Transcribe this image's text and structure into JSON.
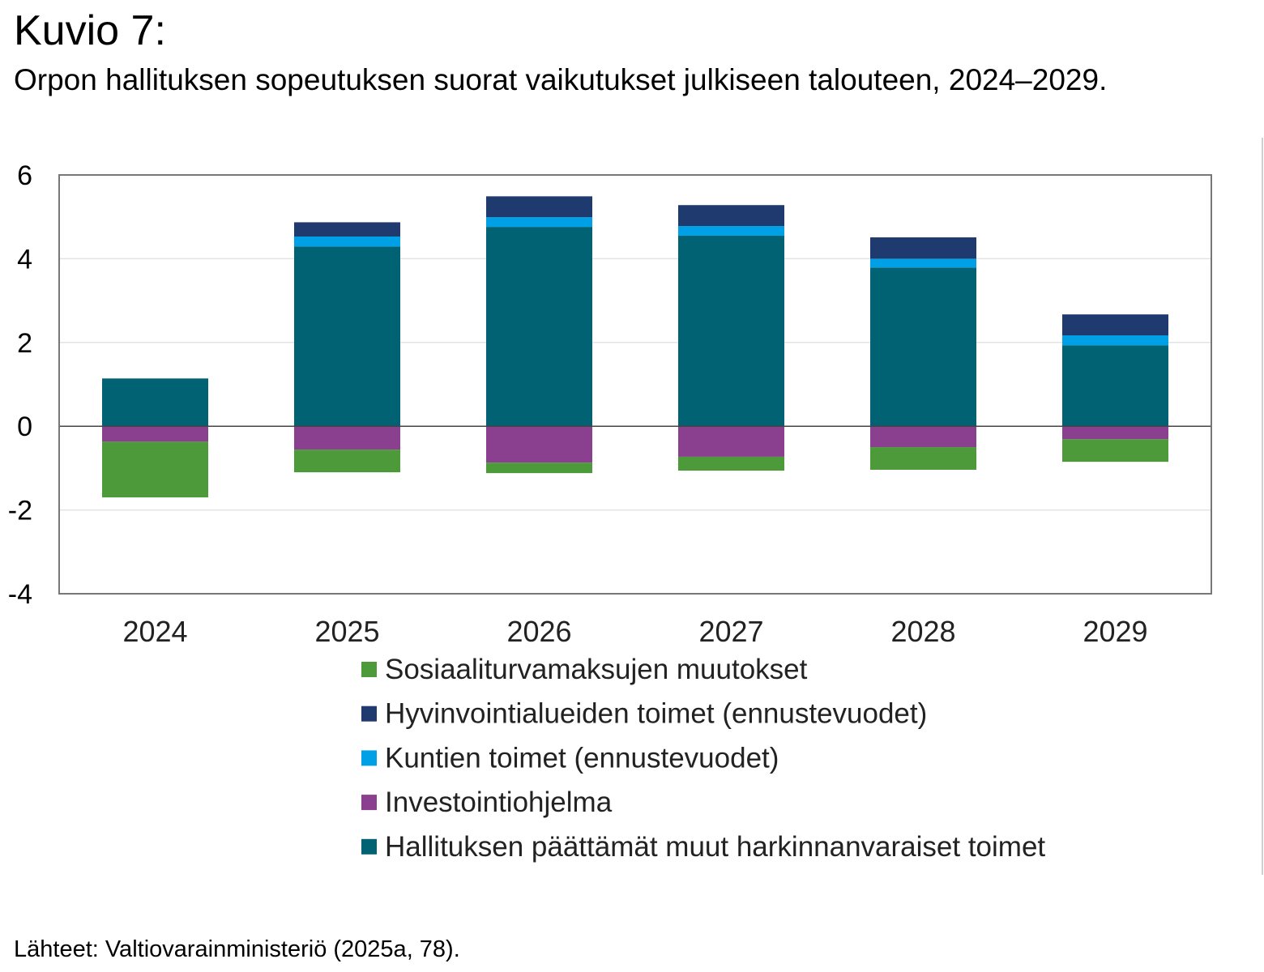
{
  "title": "Kuvio 7:",
  "subtitle": "Orpon hallituksen sopeutuksen suorat vaikutukset julkiseen talouteen, 2024–2029.",
  "source": "Lähteet: Valtiovarainministeriö (2025a, 78).",
  "chart_data": {
    "type": "bar",
    "stacked": true,
    "categories": [
      "2024",
      "2025",
      "2026",
      "2027",
      "2028",
      "2029"
    ],
    "ylim": [
      -4,
      6
    ],
    "yticks": [
      -4,
      -2,
      0,
      2,
      4,
      6
    ],
    "grid": true,
    "legend_position": "bottom",
    "series": [
      {
        "name": "Hallituksen päättämät muut harkinnanvaraiset toimet",
        "color": "#006272",
        "values": [
          1.14,
          4.29,
          4.76,
          4.55,
          3.79,
          1.93
        ]
      },
      {
        "name": "Kuntien toimet (ennustevuodet)",
        "color": "#00a0e6",
        "values": [
          0,
          0.24,
          0.23,
          0.23,
          0.21,
          0.24
        ]
      },
      {
        "name": "Hyvinvointialueiden toimet (ennustevuodet)",
        "color": "#1f3a6e",
        "values": [
          0,
          0.34,
          0.5,
          0.5,
          0.51,
          0.5
        ]
      },
      {
        "name": "Investointiohjelma",
        "color": "#8b3f8f",
        "values": [
          -0.37,
          -0.56,
          -0.87,
          -0.73,
          -0.5,
          -0.31
        ]
      },
      {
        "name": "Sosiaaliturvamaksujen muutokset",
        "color": "#4c9a3a",
        "values": [
          -1.33,
          -0.54,
          -0.25,
          -0.33,
          -0.54,
          -0.54
        ]
      }
    ],
    "legend_order": [
      4,
      2,
      1,
      3,
      0
    ]
  }
}
